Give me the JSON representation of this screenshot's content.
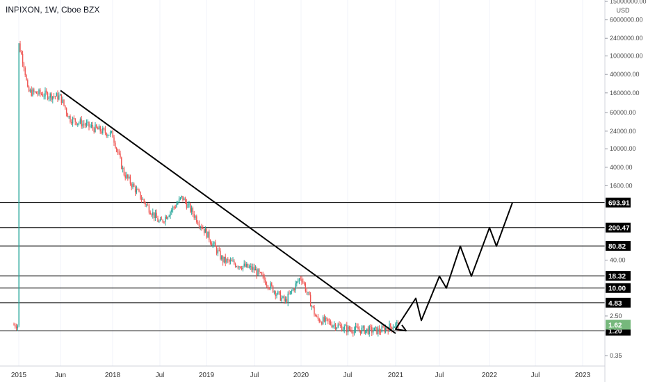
{
  "chart_data": {
    "type": "candlestick",
    "title": "INPIXON, 1W, Cboe BZX",
    "y_unit": "USD",
    "y_scale": "log",
    "y_ticks": [
      "15000000.00",
      "6000000.00",
      "2400000.00",
      "1000000.00",
      "400000.00",
      "160000.00",
      "60000.00",
      "24000.00",
      "10000.00",
      "4000.00",
      "1600.00",
      "40.00",
      "2.50",
      "0.35"
    ],
    "x_ticks": [
      "2015",
      "Jun",
      "2018",
      "Jul",
      "2019",
      "Jul",
      "2020",
      "Jul",
      "2021",
      "Jul",
      "2022",
      "Jul",
      "2023"
    ],
    "colors": {
      "up": "#26a69a",
      "down": "#ef5350",
      "line": "#000000",
      "tag_bg": "#000000",
      "last_tag_bg": "#76b87c"
    },
    "price_history": {
      "description_series": "weekly price path (approximate)",
      "points": [
        {
          "x": "2015",
          "y": 1800000
        },
        {
          "x": "2015-Q2",
          "y": 600000
        },
        {
          "x": "2015-Q3",
          "y": 170000
        },
        {
          "x": "Jun",
          "y": 130000
        },
        {
          "x": "Jun-late",
          "y": 45000
        },
        {
          "x": "pre-2018",
          "y": 26000
        },
        {
          "x": "2018",
          "y": 20000
        },
        {
          "x": "2018-Q2",
          "y": 3000
        },
        {
          "x": "2018-Q3",
          "y": 800
        },
        {
          "x": "Jul",
          "y": 250
        },
        {
          "x": "Jul-late",
          "y": 900
        },
        {
          "x": "2019",
          "y": 150
        },
        {
          "x": "2019-Q2",
          "y": 40
        },
        {
          "x": "Jul 2019",
          "y": 25
        },
        {
          "x": "2020-pre",
          "y": 5
        },
        {
          "x": "2020",
          "y": 18
        },
        {
          "x": "2020-Q1",
          "y": 2.2
        },
        {
          "x": "Jul 2020",
          "y": 1.3
        },
        {
          "x": "2021-pre",
          "y": 1.2
        },
        {
          "x": "2021",
          "y": 1.62
        }
      ]
    },
    "trendline": {
      "from": {
        "x": "Jun",
        "y": 180000
      },
      "to": {
        "x": "2021",
        "y": 1.05
      }
    },
    "projection": {
      "points": [
        {
          "x": "2021",
          "y": 1.3
        },
        {
          "x": "2021-Feb",
          "y": 6.0
        },
        {
          "x": "2021-Mar",
          "y": 2.0
        },
        {
          "x": "Jul",
          "y": 18.0
        },
        {
          "x": "Jul-late",
          "y": 10.0
        },
        {
          "x": "2021-Aug",
          "y": 80.0
        },
        {
          "x": "2021-Oct",
          "y": 18.0
        },
        {
          "x": "2022",
          "y": 200.0
        },
        {
          "x": "2022-Feb",
          "y": 80.0
        },
        {
          "x": "2022-May",
          "y": 694.0
        }
      ]
    },
    "horizontal_levels": [
      "693.91",
      "200.47",
      "80.82",
      "18.32",
      "10.00",
      "4.83",
      "1.20"
    ],
    "current_price": "1.62"
  }
}
